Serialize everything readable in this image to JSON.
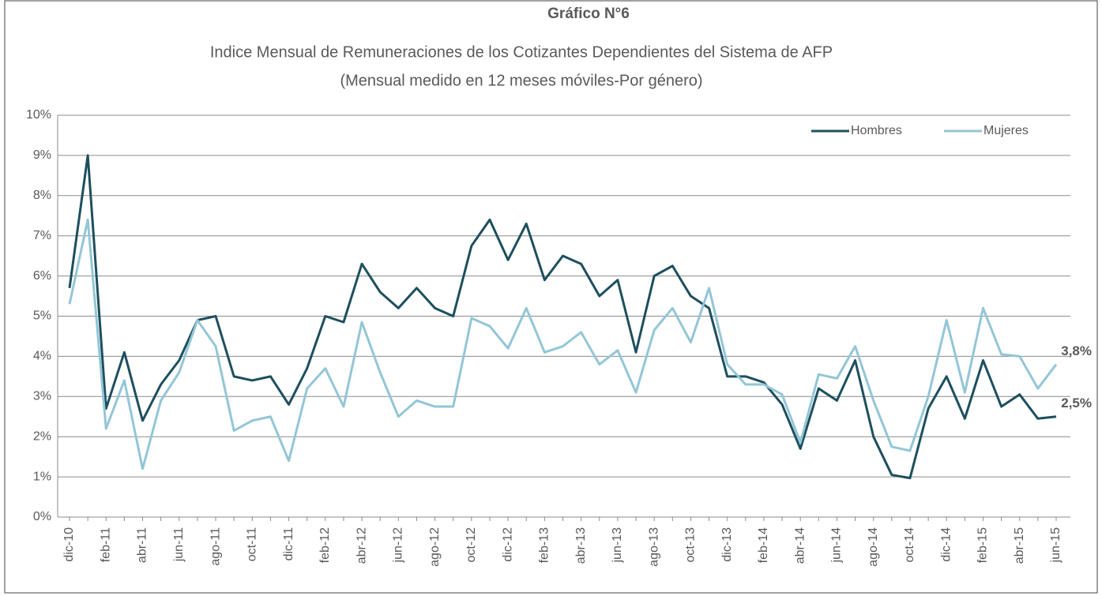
{
  "chart_data": {
    "type": "line",
    "title": "Gráfico N°6",
    "subtitle": [
      "Indice Mensual de Remuneraciones de los Cotizantes Dependientes del Sistema de AFP",
      "(Mensual medido en 12 meses móviles-Por género)"
    ],
    "categories": [
      "dic-10",
      null,
      "feb-11",
      null,
      "abr-11",
      null,
      "jun-11",
      null,
      "ago-11",
      null,
      "oct-11",
      null,
      "dic-11",
      null,
      "feb-12",
      null,
      "abr-12",
      null,
      "jun-12",
      null,
      "ago-12",
      null,
      "oct-12",
      null,
      "dic-12",
      null,
      "feb-13",
      null,
      "abr-13",
      null,
      "jun-13",
      null,
      "ago-13",
      null,
      "oct-13",
      null,
      "dic-13",
      null,
      "feb-14",
      null,
      "abr-14",
      null,
      "jun-14",
      null,
      "ago-14",
      null,
      "oct-14",
      null,
      "dic-14",
      null,
      "feb-15",
      null,
      "abr-15",
      null,
      "jun-15"
    ],
    "series": [
      {
        "name": "Hombres",
        "color": "#1d4f5e",
        "values": [
          5.7,
          9.0,
          2.7,
          4.1,
          2.4,
          3.3,
          3.9,
          4.9,
          5.0,
          3.5,
          3.4,
          3.5,
          2.8,
          3.7,
          5.0,
          4.85,
          6.3,
          5.6,
          5.2,
          5.7,
          5.2,
          5.0,
          6.75,
          7.4,
          6.4,
          7.3,
          5.9,
          6.5,
          6.3,
          5.5,
          5.9,
          4.1,
          6.0,
          6.25,
          5.5,
          5.2,
          3.5,
          3.5,
          3.35,
          2.8,
          1.7,
          3.2,
          2.9,
          3.9,
          2.0,
          1.05,
          0.97,
          2.7,
          3.5,
          2.45,
          3.9,
          2.75,
          3.05,
          2.45,
          2.5
        ],
        "value_labels": [
          null,
          null,
          null,
          null,
          null,
          null,
          null,
          null,
          null,
          null,
          null,
          null,
          null,
          null,
          null,
          null,
          null,
          null,
          null,
          null,
          null,
          null,
          null,
          null,
          null,
          null,
          null,
          null,
          null,
          null,
          null,
          null,
          null,
          null,
          null,
          null,
          null,
          null,
          null,
          null,
          null,
          null,
          null,
          null,
          null,
          null,
          null,
          null,
          null,
          null,
          null,
          null,
          null,
          null,
          "2,5%"
        ]
      },
      {
        "name": "Mujeres",
        "color": "#93c6d6",
        "values": [
          5.3,
          7.4,
          2.2,
          3.4,
          1.2,
          2.9,
          3.6,
          4.9,
          4.25,
          2.15,
          2.4,
          2.5,
          1.4,
          3.2,
          3.7,
          2.75,
          4.85,
          3.6,
          2.5,
          2.9,
          2.75,
          2.75,
          4.95,
          4.75,
          4.2,
          5.2,
          4.1,
          4.25,
          4.6,
          3.8,
          4.15,
          3.1,
          4.65,
          5.2,
          4.35,
          5.7,
          3.8,
          3.3,
          3.3,
          3.05,
          1.85,
          3.55,
          3.45,
          4.25,
          2.9,
          1.75,
          1.65,
          3.0,
          4.9,
          3.1,
          5.2,
          4.05,
          4.0,
          3.2,
          3.8
        ],
        "value_labels": [
          null,
          null,
          null,
          null,
          null,
          null,
          null,
          null,
          null,
          null,
          null,
          null,
          null,
          null,
          null,
          null,
          null,
          null,
          null,
          null,
          null,
          null,
          null,
          null,
          null,
          null,
          null,
          null,
          null,
          null,
          null,
          null,
          null,
          null,
          null,
          null,
          null,
          null,
          null,
          null,
          null,
          null,
          null,
          null,
          null,
          null,
          null,
          null,
          null,
          null,
          null,
          null,
          null,
          null,
          "3,8%"
        ]
      }
    ],
    "ylim": [
      0,
      10
    ],
    "yticks": [
      {
        "value": 0,
        "label": "0%"
      },
      {
        "value": 1,
        "label": "1%"
      },
      {
        "value": 2,
        "label": "2%"
      },
      {
        "value": 3,
        "label": "3%"
      },
      {
        "value": 4,
        "label": "4%"
      },
      {
        "value": 5,
        "label": "5%"
      },
      {
        "value": 6,
        "label": "6%"
      },
      {
        "value": 7,
        "label": "7%"
      },
      {
        "value": 8,
        "label": "8%"
      },
      {
        "value": 9,
        "label": "9%"
      },
      {
        "value": 10,
        "label": "10%"
      }
    ],
    "grid": true,
    "legend": "upper right"
  }
}
